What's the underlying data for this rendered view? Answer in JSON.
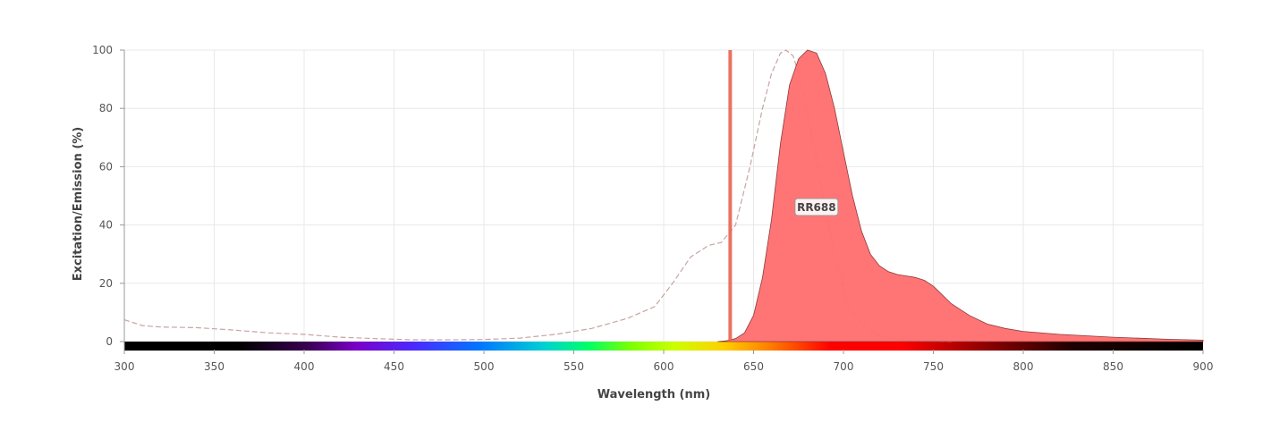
{
  "chart_data": {
    "type": "area",
    "xlabel": "Wavelength (nm)",
    "ylabel": "Excitation/Emission (%)",
    "xlim": [
      300,
      900
    ],
    "ylim": [
      0,
      100
    ],
    "x_ticks": [
      300,
      350,
      400,
      450,
      500,
      550,
      600,
      650,
      700,
      750,
      800,
      850,
      900
    ],
    "y_ticks": [
      0,
      20,
      40,
      60,
      80,
      100
    ],
    "grid": true,
    "series": [
      {
        "name": "RR688",
        "role": "excitation",
        "style": "dashed line",
        "color": "#c9a3a3",
        "x": [
          300,
          310,
          320,
          340,
          360,
          380,
          400,
          420,
          440,
          460,
          480,
          500,
          520,
          540,
          560,
          580,
          595,
          605,
          615,
          625,
          632,
          640,
          648,
          655,
          660,
          665,
          668,
          672,
          676,
          680,
          685,
          690,
          695,
          700,
          705,
          710,
          720,
          730,
          740,
          750,
          760
        ],
        "y": [
          7.5,
          5.5,
          5.0,
          4.8,
          4.0,
          3.0,
          2.5,
          1.5,
          1.0,
          0.6,
          0.6,
          0.7,
          1.2,
          2.5,
          4.5,
          8.0,
          12.0,
          20.0,
          29.0,
          33.0,
          34.0,
          40.0,
          60.0,
          80.0,
          92.0,
          99.0,
          100.0,
          98.0,
          90.0,
          78.0,
          62.0,
          45.0,
          30.0,
          18.0,
          10.0,
          6.0,
          2.0,
          0.8,
          0.3,
          0.1,
          0.0
        ]
      },
      {
        "name": "RR688",
        "role": "emission",
        "style": "filled area",
        "color": "#ff6e6e",
        "x": [
          630,
          635,
          640,
          645,
          650,
          655,
          660,
          665,
          670,
          675,
          680,
          685,
          690,
          695,
          700,
          705,
          710,
          715,
          720,
          725,
          730,
          735,
          740,
          745,
          750,
          755,
          760,
          770,
          780,
          790,
          800,
          820,
          850,
          880,
          900
        ],
        "y": [
          0.0,
          0.3,
          1.0,
          3.0,
          9.0,
          22.0,
          42.0,
          68.0,
          88.0,
          97.0,
          100.0,
          99.0,
          92.0,
          80.0,
          65.0,
          50.0,
          38.0,
          30.0,
          26.0,
          24.0,
          23.0,
          22.5,
          22.0,
          21.0,
          19.0,
          16.0,
          13.0,
          9.0,
          6.0,
          4.5,
          3.5,
          2.5,
          1.5,
          0.8,
          0.5
        ]
      }
    ],
    "laser_line": {
      "x": 637,
      "color": "#e8634f"
    },
    "annotations": [
      {
        "text": "RR688",
        "x": 685,
        "y": 46
      }
    ],
    "spectrum_bar": true
  }
}
